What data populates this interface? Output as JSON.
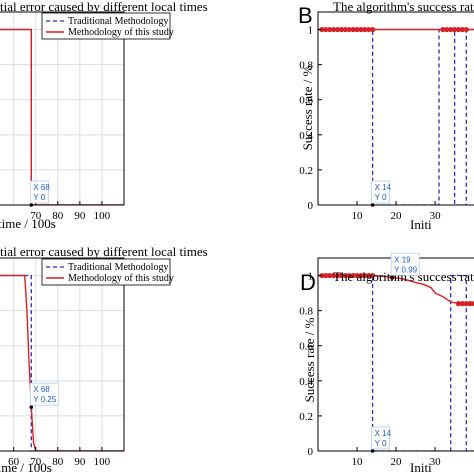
{
  "colors": {
    "traditional": "#2b2bb8",
    "study": "#d62027",
    "grid": "#dedede",
    "tip_text": "#1f5fbf",
    "tip_border": "#b8cde6"
  },
  "chart_data": [
    {
      "panel": "",
      "type": "line",
      "title": "tial error caused by different local times",
      "xlabel": "time / 100s",
      "ylabel": "",
      "xlim": [
        52,
        110
      ],
      "ylim": [
        0,
        1.1
      ],
      "xticks": [
        70,
        80,
        90,
        100
      ],
      "legend": {
        "position": "top-right",
        "entries": [
          "Traditional Methodology",
          "Methodology of this study"
        ]
      },
      "series": [
        {
          "name": "Traditional Methodology",
          "style": "dashed",
          "x": [
            52,
            68,
            68,
            110
          ],
          "y": [
            1,
            1,
            0,
            0
          ]
        },
        {
          "name": "Methodology of this study",
          "style": "solid",
          "x": [
            52,
            68,
            68,
            110
          ],
          "y": [
            1,
            1,
            0,
            0
          ]
        }
      ],
      "datatip": {
        "x": 68,
        "y": 0,
        "label_x": "X 68",
        "label_y": "Y 0"
      }
    },
    {
      "panel": "B",
      "type": "line",
      "title": "The algorithm's success rate is c",
      "xlabel": "Initi",
      "ylabel": "Success rate / %",
      "xlim": [
        0,
        41
      ],
      "ylim": [
        0,
        1.1
      ],
      "xticks": [
        10,
        20,
        30
      ],
      "yticks": [
        0,
        0.2,
        0.4,
        0.6,
        0.8,
        1
      ],
      "series": [
        {
          "name": "Traditional Methodology",
          "style": "dashed",
          "x": [
            0,
            14,
            14,
            31,
            31,
            35,
            35,
            38,
            38,
            41
          ],
          "y": [
            1,
            1,
            0,
            0,
            1,
            1,
            0,
            0,
            1,
            1
          ]
        },
        {
          "name": "Methodology of this study",
          "style": "solid",
          "x": [
            0,
            41
          ],
          "y": [
            1,
            1
          ]
        }
      ],
      "marked_x": [
        1,
        2,
        3,
        4,
        5,
        6,
        7,
        8,
        9,
        10,
        11,
        12,
        13,
        14,
        32,
        33,
        34,
        35,
        36,
        37,
        38
      ],
      "datatip": {
        "x": 14,
        "y": 0,
        "label_x": "X 14",
        "label_y": "Y 0"
      }
    },
    {
      "panel": "",
      "type": "line",
      "title": "tial error caused by different local times",
      "xlabel": "time / 100s",
      "ylabel": "",
      "xlim": [
        52,
        110
      ],
      "ylim": [
        0,
        1.1
      ],
      "xticks": [
        60,
        70,
        80,
        90,
        100
      ],
      "legend": {
        "position": "top-right",
        "entries": [
          "Traditional Methodology",
          "Methodology of this study"
        ]
      },
      "series": [
        {
          "name": "Traditional Methodology",
          "style": "dashed",
          "x": [
            52,
            68,
            68,
            110
          ],
          "y": [
            1,
            1,
            0,
            0
          ]
        },
        {
          "name": "Methodology of this study",
          "style": "solid",
          "x": [
            52,
            65,
            66,
            67,
            68,
            69,
            70,
            110
          ],
          "y": [
            1,
            1,
            0.8,
            0.5,
            0.25,
            0.05,
            0,
            0
          ]
        }
      ],
      "datatip": {
        "x": 68,
        "y": 0.25,
        "label_x": "X 68",
        "label_y": "Y 0.25"
      }
    },
    {
      "panel": "D",
      "type": "line",
      "title": "The algorithm's success rate is c",
      "xlabel": "Initi",
      "ylabel": "Success rate / %",
      "xlim": [
        0,
        41
      ],
      "ylim": [
        0,
        1.1
      ],
      "xticks": [
        10,
        20,
        30
      ],
      "yticks": [
        0,
        0.2,
        0.4,
        0.6,
        0.8,
        1
      ],
      "series": [
        {
          "name": "Traditional Methodology",
          "style": "dashed",
          "x": [
            0,
            14,
            14,
            34,
            34,
            38,
            38,
            41
          ],
          "y": [
            1,
            1,
            0,
            0,
            1,
            1,
            0,
            0
          ]
        },
        {
          "name": "Methodology of this study",
          "style": "solid",
          "x": [
            0,
            14,
            19,
            22,
            25,
            27,
            29,
            30,
            32,
            34,
            36,
            38,
            40,
            41
          ],
          "y": [
            1,
            1,
            0.99,
            0.98,
            0.96,
            0.95,
            0.93,
            0.9,
            0.88,
            0.85,
            0.84,
            0.84,
            0.84,
            0.84
          ]
        }
      ],
      "marked_x": [
        1,
        2,
        3,
        4,
        5,
        6,
        7,
        8,
        9,
        10,
        11,
        12,
        13,
        14,
        19,
        36,
        37,
        38,
        39,
        40
      ],
      "datatips": [
        {
          "x": 19,
          "y": 0.99,
          "label_x": "X 19",
          "label_y": "Y 0.99"
        },
        {
          "x": 14,
          "y": 0,
          "label_x": "X 14",
          "label_y": "Y 0"
        }
      ]
    }
  ]
}
